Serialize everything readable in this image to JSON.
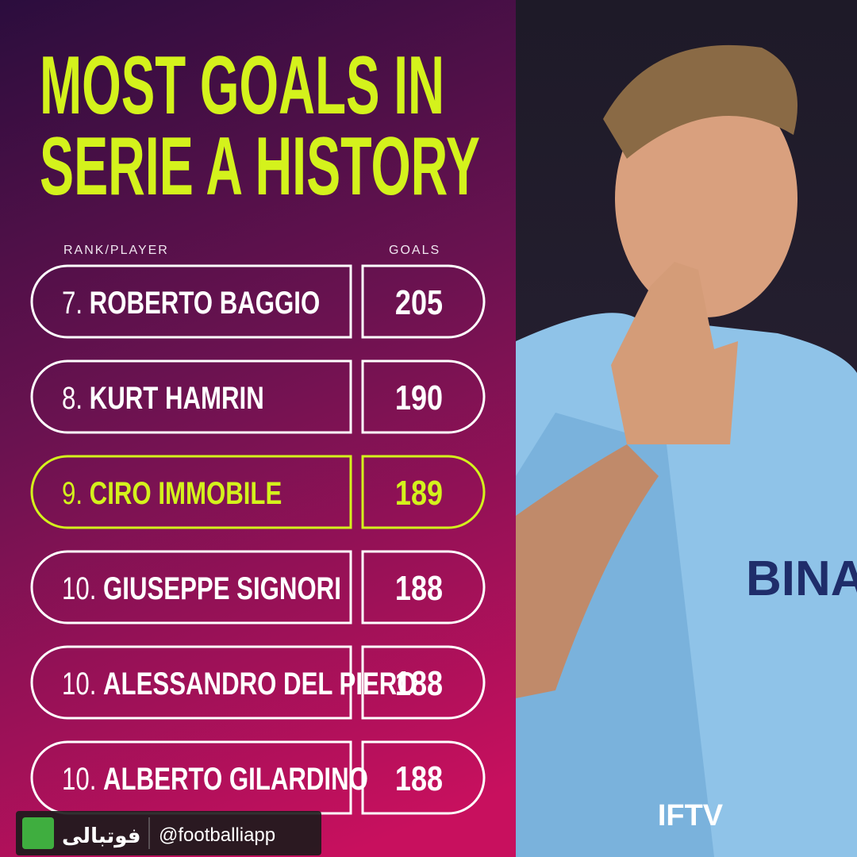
{
  "header": {
    "title_lines": [
      "MOST GOALS IN",
      "SERIE A HISTORY"
    ],
    "column_player": "RANK/PLAYER",
    "column_goals": "GOALS"
  },
  "table": {
    "rows": [
      {
        "rank": "7.",
        "player": "ROBERTO BAGGIO",
        "goals": 205
      },
      {
        "rank": "8.",
        "player": "KURT HAMRIN",
        "goals": 190
      },
      {
        "rank": "9.",
        "player": "CIRO IMMOBILE",
        "goals": 189,
        "highlight": true
      },
      {
        "rank": "10.",
        "player": "GIUSEPPE SIGNORI",
        "goals": 188
      },
      {
        "rank": "10.",
        "player": "ALESSANDRO DEL PIERO",
        "goals": 188
      },
      {
        "rank": "10.",
        "player": "ALBERTO GILARDINO",
        "goals": 188
      }
    ]
  },
  "footer": {
    "brand": "IFTV",
    "handle": "@footballiapp",
    "app_name": "فوتبالی"
  }
}
